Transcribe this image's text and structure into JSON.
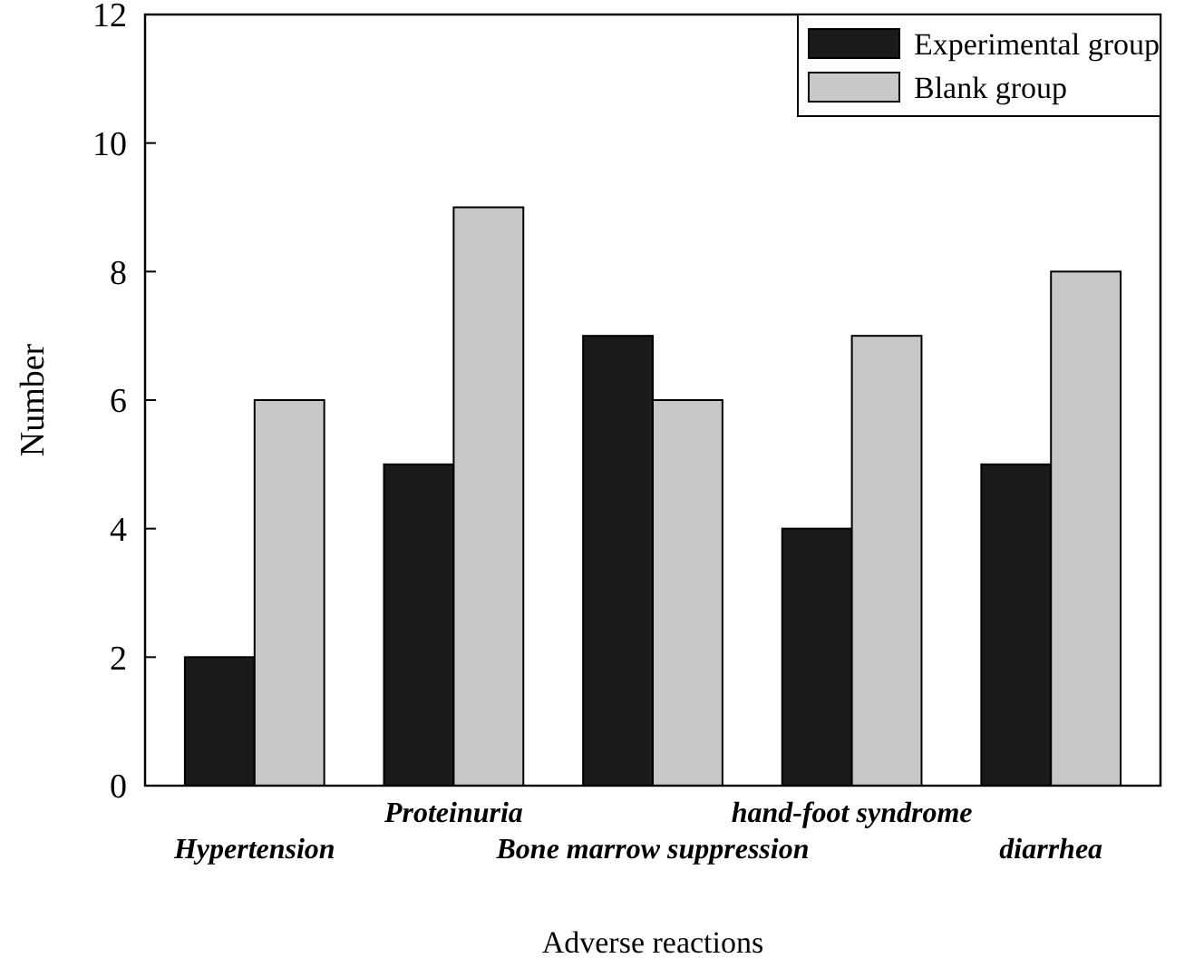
{
  "chart_data": {
    "type": "bar",
    "xlabel": "Adverse reactions",
    "ylabel": "Number",
    "categories": [
      "Hypertension",
      "Proteinuria",
      "Bone marrow suppression",
      "hand-foot syndrome",
      "diarrhea"
    ],
    "series": [
      {
        "name": "Experimental group",
        "color": "#1a1a1a",
        "values": [
          2,
          5,
          7,
          4,
          5
        ]
      },
      {
        "name": "Blank group",
        "color": "#c8c8c8",
        "values": [
          6,
          9,
          6,
          7,
          8
        ]
      }
    ],
    "ylim": [
      0,
      12
    ],
    "yticks": [
      0,
      2,
      4,
      6,
      8,
      10,
      12
    ],
    "grid": false,
    "legend": "top right"
  }
}
